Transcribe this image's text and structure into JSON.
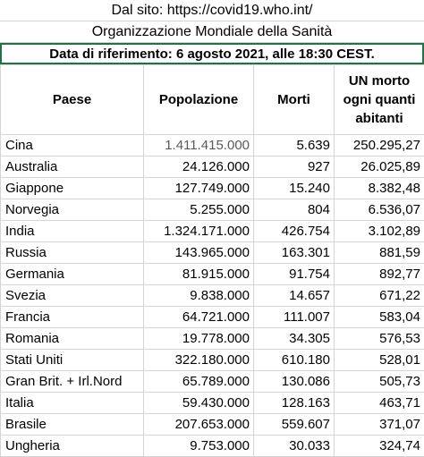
{
  "source_line": "Dal sito: https://covid19.who.int/",
  "organization": "Organizzazione Mondiale della Sanità",
  "reference_date": "Data di riferimento: 6 agosto 2021, alle 18:30 CEST.",
  "headers": {
    "country": "Paese",
    "population": "Popolazione",
    "deaths": "Morti",
    "ratio": "UN morto ogni quanti abitanti"
  },
  "rows": [
    {
      "country": "Cina",
      "population": "1.411.415.000",
      "deaths": "5.639",
      "ratio": "250.295,27"
    },
    {
      "country": "Australia",
      "population": "24.126.000",
      "deaths": "927",
      "ratio": "26.025,89"
    },
    {
      "country": "Giappone",
      "population": "127.749.000",
      "deaths": "15.240",
      "ratio": "8.382,48"
    },
    {
      "country": "Norvegia",
      "population": "5.255.000",
      "deaths": "804",
      "ratio": "6.536,07"
    },
    {
      "country": "India",
      "population": "1.324.171.000",
      "deaths": "426.754",
      "ratio": "3.102,89"
    },
    {
      "country": "Russia",
      "population": "143.965.000",
      "deaths": "163.301",
      "ratio": "881,59"
    },
    {
      "country": "Germania",
      "population": "81.915.000",
      "deaths": "91.754",
      "ratio": "892,77"
    },
    {
      "country": "Svezia",
      "population": "9.838.000",
      "deaths": "14.657",
      "ratio": "671,22"
    },
    {
      "country": "Francia",
      "population": "64.721.000",
      "deaths": "111.007",
      "ratio": "583,04"
    },
    {
      "country": "Romania",
      "population": "19.778.000",
      "deaths": "34.305",
      "ratio": "576,53"
    },
    {
      "country": "Stati Uniti",
      "population": "322.180.000",
      "deaths": "610.180",
      "ratio": "528,01"
    },
    {
      "country": "Gran Brit. + Irl.Nord",
      "population": "65.789.000",
      "deaths": "130.086",
      "ratio": "505,73"
    },
    {
      "country": "Italia",
      "population": "59.430.000",
      "deaths": "128.163",
      "ratio": "463,71"
    },
    {
      "country": "Brasile",
      "population": "207.653.000",
      "deaths": "559.607",
      "ratio": "371,07"
    },
    {
      "country": "Ungheria",
      "population": "9.753.000",
      "deaths": "30.033",
      "ratio": "324,74"
    }
  ]
}
